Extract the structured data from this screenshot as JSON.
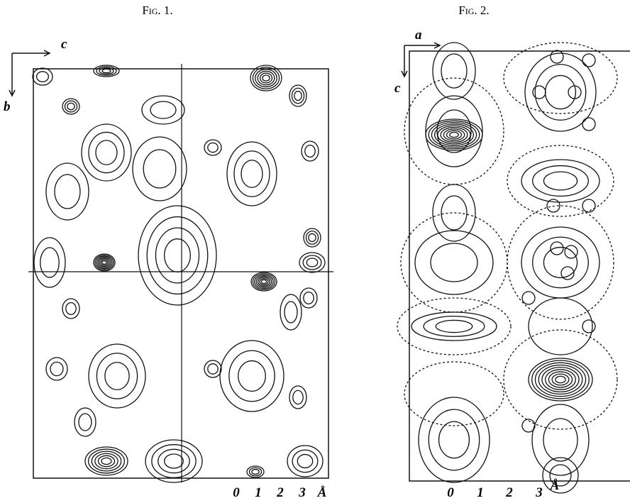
{
  "figures": [
    {
      "title": "Fig. 1.",
      "axis_labels": [
        "c",
        "b"
      ],
      "scale_labels": [
        "0",
        "1",
        "2",
        "3",
        "Å"
      ]
    },
    {
      "title": "Fig. 2.",
      "axis_labels": [
        "a",
        "c"
      ],
      "scale_labels": [
        "0",
        "1",
        "2",
        "3",
        "Å"
      ]
    }
  ]
}
